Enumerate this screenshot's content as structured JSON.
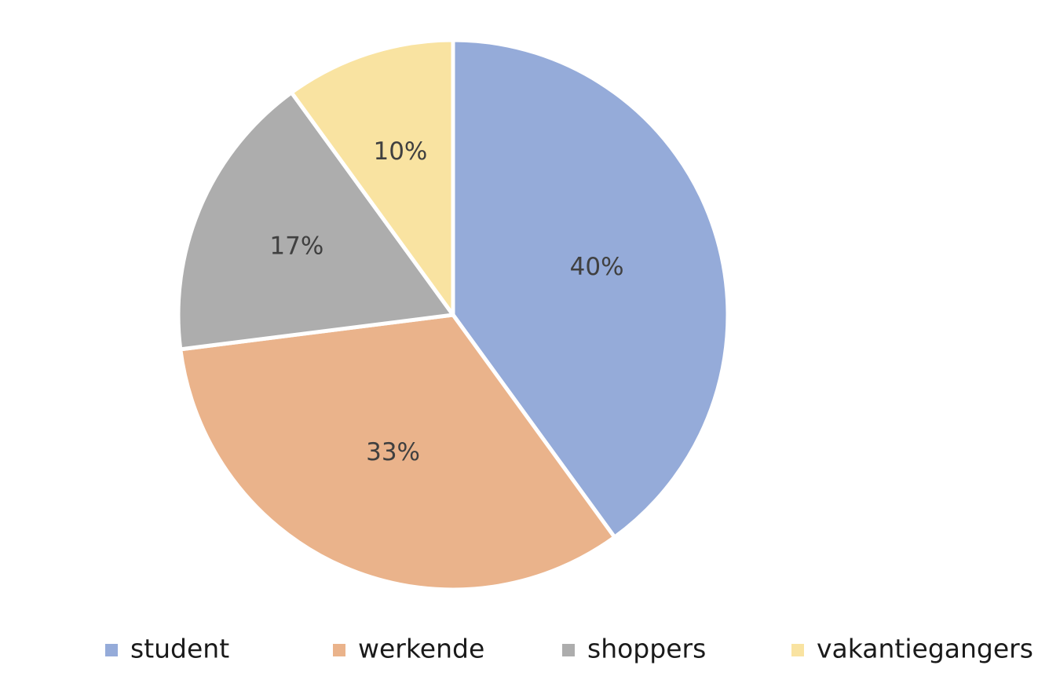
{
  "chart_data": {
    "type": "pie",
    "title": "",
    "categories": [
      "student",
      "werkende",
      "shoppers",
      "vakantiegangers"
    ],
    "values": [
      40,
      33,
      17,
      10
    ],
    "data_labels": [
      "40%",
      "33%",
      "17%",
      "10%"
    ],
    "unit": "%",
    "colors": [
      "#95abd9",
      "#eab38b",
      "#adadad",
      "#f9e3a1"
    ],
    "start_angle": "12 o'clock",
    "direction": "clockwise",
    "legend": {
      "placement": "bottom",
      "entries": [
        "student",
        "werkende",
        "shoppers",
        "vakantiegangers"
      ]
    }
  }
}
